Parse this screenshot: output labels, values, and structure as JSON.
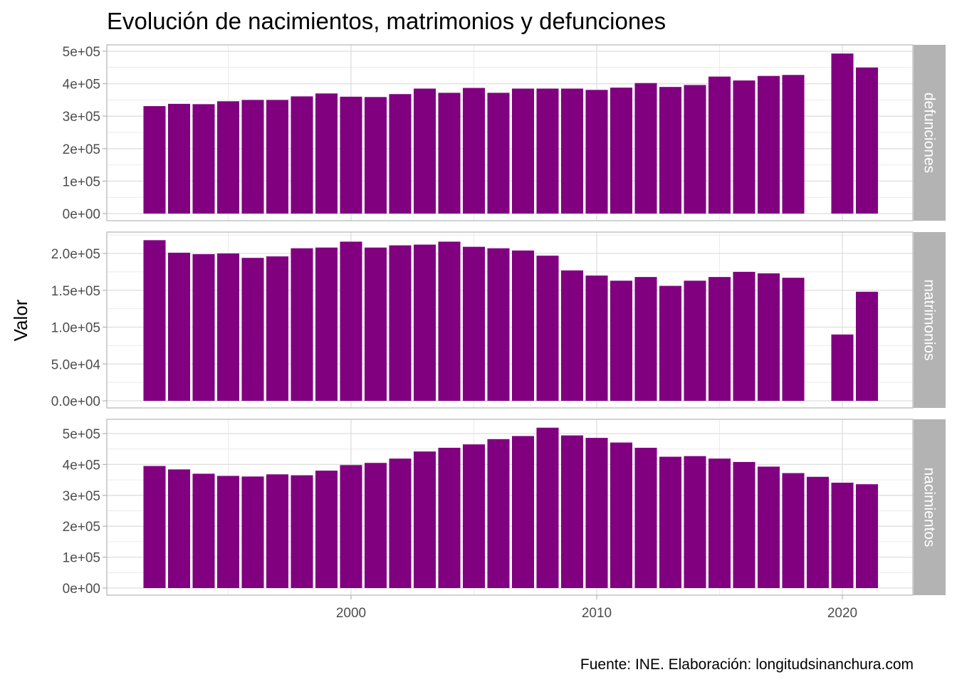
{
  "chart_data": {
    "type": "bar",
    "title": "Evolución de nacimientos, matrimonios y defunciones",
    "ylabel": "Valor",
    "xlabel": "",
    "caption": "Fuente: INE. Elaboración: longitudsinanchura.com",
    "bar_color": "#800080",
    "strip_color": "#B3B3B3",
    "grid": true,
    "x_ticks": [
      2000,
      2010,
      2020
    ],
    "x_range": [
      1991.5,
      2022.5
    ],
    "facets": [
      {
        "label": "defunciones",
        "ylim": [
          0,
          500000
        ],
        "y_ticks": [
          "0e+00",
          "1e+05",
          "2e+05",
          "3e+05",
          "4e+05",
          "5e+05"
        ],
        "y_tick_values": [
          0,
          100000,
          200000,
          300000,
          400000,
          500000
        ],
        "points": [
          {
            "x": 1993,
            "y": 331000
          },
          {
            "x": 1994,
            "y": 338000
          },
          {
            "x": 1995,
            "y": 337000
          },
          {
            "x": 1996,
            "y": 346000
          },
          {
            "x": 1997,
            "y": 350000
          },
          {
            "x": 1998,
            "y": 350000
          },
          {
            "x": 1999,
            "y": 361000
          },
          {
            "x": 2000,
            "y": 370000
          },
          {
            "x": 2001,
            "y": 360000
          },
          {
            "x": 2002,
            "y": 359000
          },
          {
            "x": 2003,
            "y": 368000
          },
          {
            "x": 2004,
            "y": 385000
          },
          {
            "x": 2005,
            "y": 372000
          },
          {
            "x": 2006,
            "y": 387000
          },
          {
            "x": 2007,
            "y": 372000
          },
          {
            "x": 2008,
            "y": 385000
          },
          {
            "x": 2009,
            "y": 385000
          },
          {
            "x": 2010,
            "y": 385000
          },
          {
            "x": 2011,
            "y": 381000
          },
          {
            "x": 2012,
            "y": 388000
          },
          {
            "x": 2013,
            "y": 402000
          },
          {
            "x": 2014,
            "y": 390000
          },
          {
            "x": 2015,
            "y": 396000
          },
          {
            "x": 2016,
            "y": 422000
          },
          {
            "x": 2017,
            "y": 410000
          },
          {
            "x": 2018,
            "y": 424000
          },
          {
            "x": 2019,
            "y": 427000
          },
          {
            "x": 2021,
            "y": 493000
          },
          {
            "x": 2022,
            "y": 450000
          }
        ]
      },
      {
        "label": "matrimonios",
        "ylim": [
          0,
          230000
        ],
        "y_ticks": [
          "0.0e+00",
          "5.0e+04",
          "1.0e+05",
          "1.5e+05",
          "2.0e+05"
        ],
        "y_tick_values": [
          0,
          50000,
          100000,
          150000,
          200000
        ],
        "points": [
          {
            "x": 1993,
            "y": 218000
          },
          {
            "x": 1994,
            "y": 201000
          },
          {
            "x": 1995,
            "y": 199000
          },
          {
            "x": 1996,
            "y": 200000
          },
          {
            "x": 1997,
            "y": 194000
          },
          {
            "x": 1998,
            "y": 196000
          },
          {
            "x": 1999,
            "y": 207000
          },
          {
            "x": 2000,
            "y": 208000
          },
          {
            "x": 2001,
            "y": 216000
          },
          {
            "x": 2002,
            "y": 208000
          },
          {
            "x": 2003,
            "y": 211000
          },
          {
            "x": 2004,
            "y": 212000
          },
          {
            "x": 2005,
            "y": 216000
          },
          {
            "x": 2006,
            "y": 209000
          },
          {
            "x": 2007,
            "y": 207000
          },
          {
            "x": 2008,
            "y": 204000
          },
          {
            "x": 2009,
            "y": 197000
          },
          {
            "x": 2010,
            "y": 177000
          },
          {
            "x": 2011,
            "y": 170000
          },
          {
            "x": 2012,
            "y": 163000
          },
          {
            "x": 2013,
            "y": 168000
          },
          {
            "x": 2014,
            "y": 156000
          },
          {
            "x": 2015,
            "y": 163000
          },
          {
            "x": 2016,
            "y": 168000
          },
          {
            "x": 2017,
            "y": 175000
          },
          {
            "x": 2018,
            "y": 173000
          },
          {
            "x": 2019,
            "y": 167000
          },
          {
            "x": 2021,
            "y": 90000
          },
          {
            "x": 2022,
            "y": 148000
          }
        ]
      },
      {
        "label": "nacimientos",
        "ylim": [
          0,
          520000
        ],
        "y_ticks": [
          "0e+00",
          "1e+05",
          "2e+05",
          "3e+05",
          "4e+05",
          "5e+05"
        ],
        "y_tick_values": [
          0,
          100000,
          200000,
          300000,
          400000,
          500000
        ],
        "points": [
          {
            "x": 1993,
            "y": 395000
          },
          {
            "x": 1994,
            "y": 384000
          },
          {
            "x": 1995,
            "y": 370000
          },
          {
            "x": 1996,
            "y": 363000
          },
          {
            "x": 1997,
            "y": 361000
          },
          {
            "x": 1998,
            "y": 368000
          },
          {
            "x": 1999,
            "y": 365000
          },
          {
            "x": 2000,
            "y": 380000
          },
          {
            "x": 2001,
            "y": 398000
          },
          {
            "x": 2002,
            "y": 405000
          },
          {
            "x": 2003,
            "y": 419000
          },
          {
            "x": 2004,
            "y": 442000
          },
          {
            "x": 2005,
            "y": 454000
          },
          {
            "x": 2006,
            "y": 465000
          },
          {
            "x": 2007,
            "y": 482000
          },
          {
            "x": 2008,
            "y": 492000
          },
          {
            "x": 2009,
            "y": 519000
          },
          {
            "x": 2010,
            "y": 494000
          },
          {
            "x": 2011,
            "y": 486000
          },
          {
            "x": 2012,
            "y": 471000
          },
          {
            "x": 2013,
            "y": 454000
          },
          {
            "x": 2014,
            "y": 425000
          },
          {
            "x": 2015,
            "y": 427000
          },
          {
            "x": 2016,
            "y": 419000
          },
          {
            "x": 2017,
            "y": 408000
          },
          {
            "x": 2018,
            "y": 393000
          },
          {
            "x": 2019,
            "y": 372000
          },
          {
            "x": 2020,
            "y": 360000
          },
          {
            "x": 2021,
            "y": 341000
          },
          {
            "x": 2022,
            "y": 336000
          }
        ]
      }
    ]
  }
}
